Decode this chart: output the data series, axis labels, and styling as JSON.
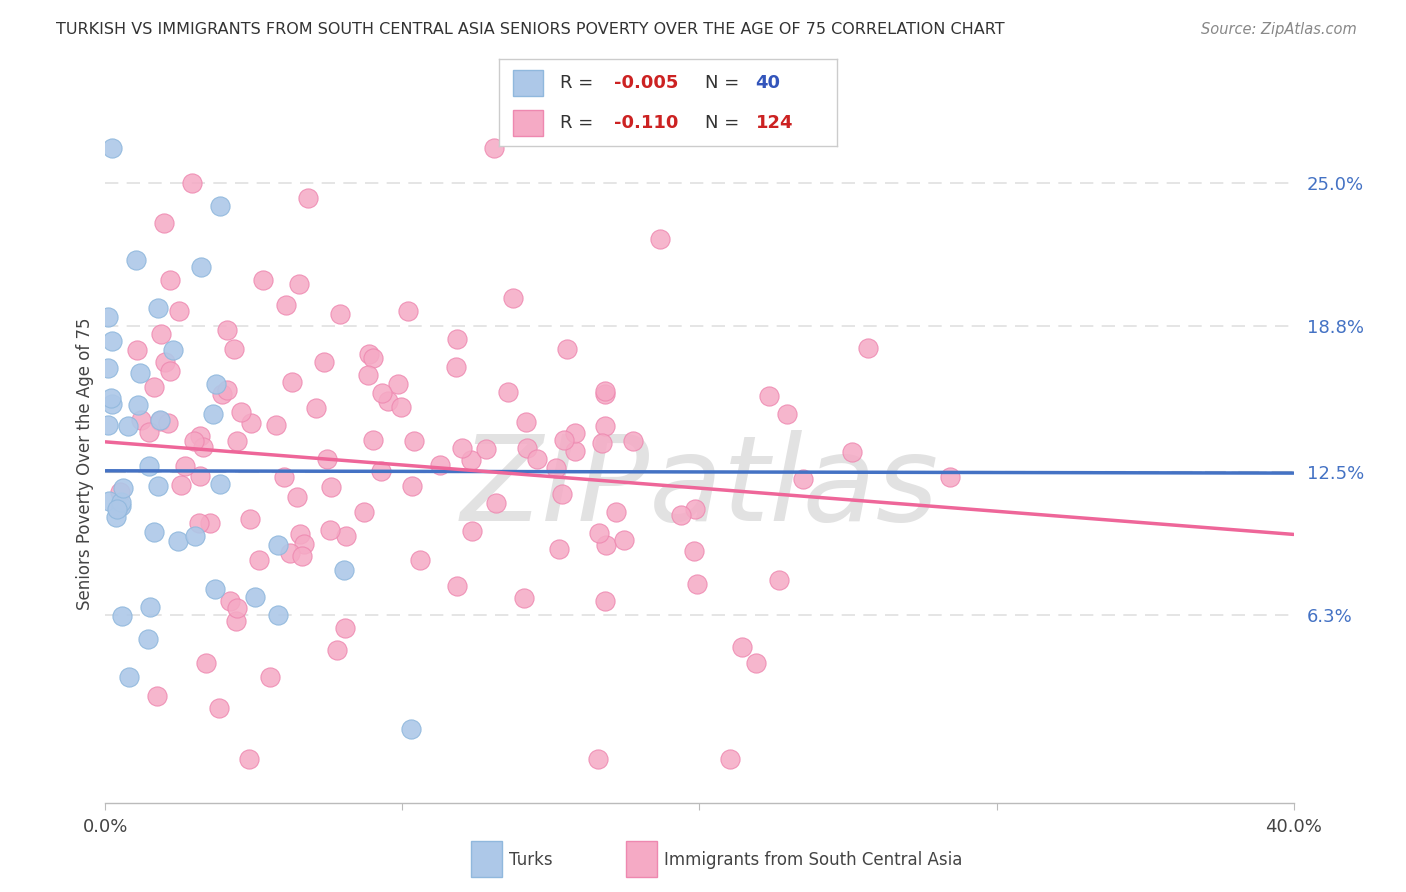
{
  "title": "TURKISH VS IMMIGRANTS FROM SOUTH CENTRAL ASIA SENIORS POVERTY OVER THE AGE OF 75 CORRELATION CHART",
  "source": "Source: ZipAtlas.com",
  "ylabel": "Seniors Poverty Over the Age of 75",
  "xlim": [
    0.0,
    0.4
  ],
  "ylim": [
    -0.018,
    0.275
  ],
  "ytick_positions": [
    0.063,
    0.125,
    0.188,
    0.25
  ],
  "ytick_labels": [
    "6.3%",
    "12.5%",
    "18.8%",
    "25.0%"
  ],
  "turks_R": -0.005,
  "turks_N": 40,
  "immigrants_R": -0.11,
  "immigrants_N": 124,
  "turks_color": "#adc8e8",
  "immigrants_color": "#f5aac5",
  "turks_edge_color": "#90b8dd",
  "immigrants_edge_color": "#ee88b0",
  "turks_line_color": "#4472c4",
  "immigrants_line_color": "#ee6699",
  "turks_line_start_y": 0.1255,
  "turks_line_end_y": 0.1245,
  "immigrants_line_start_y": 0.138,
  "immigrants_line_end_y": 0.098,
  "dashed_line_y": 0.125,
  "dashed_line_color": "#cccccc",
  "watermark": "ZIPatlas",
  "watermark_color": "#e2e2e2",
  "bg": "#ffffff",
  "grid_color": "#e0e0e0",
  "title_color": "#333333",
  "legend_border_color": "#cccccc",
  "right_tick_color": "#4472c4",
  "bottom_legend_turks_color": "#adc8e8",
  "bottom_legend_immigrants_color": "#f5aac5",
  "bottom_legend_border_turks": "#90b8dd",
  "bottom_legend_border_immigrants": "#ee88b0"
}
